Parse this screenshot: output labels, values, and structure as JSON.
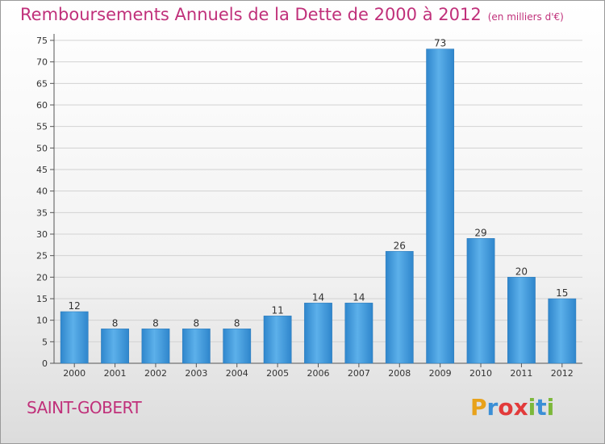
{
  "title": "Remboursements Annuels de la Dette de 2000 à 2012",
  "subtitle": "(en milliers d'€)",
  "place": "SAINT-GOBERT",
  "logo": "Proxiti",
  "colors": {
    "title": "#c0307a",
    "bar": "#3d96dc",
    "bar_light": "#5cb0ea"
  },
  "chart_data": {
    "type": "bar",
    "categories": [
      "2000",
      "2001",
      "2002",
      "2003",
      "2004",
      "2005",
      "2006",
      "2007",
      "2008",
      "2009",
      "2010",
      "2011",
      "2012"
    ],
    "values": [
      12,
      8,
      8,
      8,
      8,
      11,
      14,
      14,
      26,
      73,
      29,
      20,
      15
    ],
    "ylim": [
      0,
      75
    ],
    "yticks": [
      0,
      5,
      10,
      15,
      20,
      25,
      30,
      35,
      40,
      45,
      50,
      55,
      60,
      65,
      70,
      75
    ],
    "grid": true
  }
}
